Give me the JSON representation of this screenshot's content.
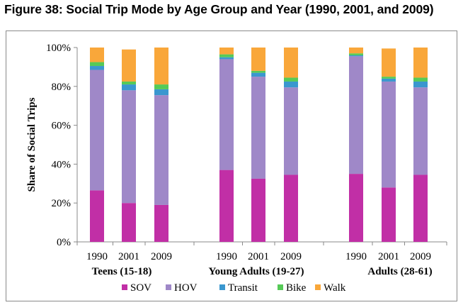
{
  "figure_title": "Figure 38: Social Trip Mode by Age Group and Year (1990, 2001, and 2009)",
  "chart_data": {
    "type": "bar",
    "stacked": true,
    "title": "Figure 38: Social Trip Mode by Age Group and Year (1990, 2001, and 2009)",
    "ylabel": "Share of Social Trips",
    "xlabel": "",
    "ylim": [
      0,
      100
    ],
    "yticks": [
      0,
      20,
      40,
      60,
      80,
      100
    ],
    "ytick_labels": [
      "0%",
      "20%",
      "40%",
      "60%",
      "80%",
      "100%"
    ],
    "groups": [
      {
        "label": "Teens (15-18)",
        "years": [
          "1990",
          "2001",
          "2009"
        ]
      },
      {
        "label": "Young Adults (19-27)",
        "years": [
          "1990",
          "2001",
          "2009"
        ]
      },
      {
        "label": "Adults (28-61)",
        "years": [
          "1990",
          "2001",
          "2009"
        ]
      }
    ],
    "categories": [
      "1990",
      "2001",
      "2009",
      "1990",
      "2001",
      "2009",
      "1990",
      "2001",
      "2009"
    ],
    "series": [
      {
        "name": "SOV",
        "color": "#c12fa6",
        "values": [
          26.5,
          20,
          19,
          37,
          32.5,
          34.5,
          35,
          28,
          34.5
        ]
      },
      {
        "name": "HOV",
        "color": "#9f88c8",
        "values": [
          62,
          58,
          56.5,
          57,
          52.5,
          45,
          60.5,
          54.5,
          45
        ]
      },
      {
        "name": "Transit",
        "color": "#3a97cf",
        "values": [
          2,
          3,
          3,
          1,
          2,
          3,
          0.5,
          1.5,
          3
        ]
      },
      {
        "name": "Bike",
        "color": "#56ca57",
        "values": [
          2,
          1.5,
          2.5,
          1.5,
          1,
          2,
          1,
          1,
          2
        ]
      },
      {
        "name": "Walk",
        "color": "#f9a73a",
        "values": [
          7.5,
          16.5,
          19,
          3.5,
          12,
          15.5,
          3,
          14.5,
          15.5
        ]
      }
    ],
    "legend_position": "bottom",
    "grid": false
  }
}
